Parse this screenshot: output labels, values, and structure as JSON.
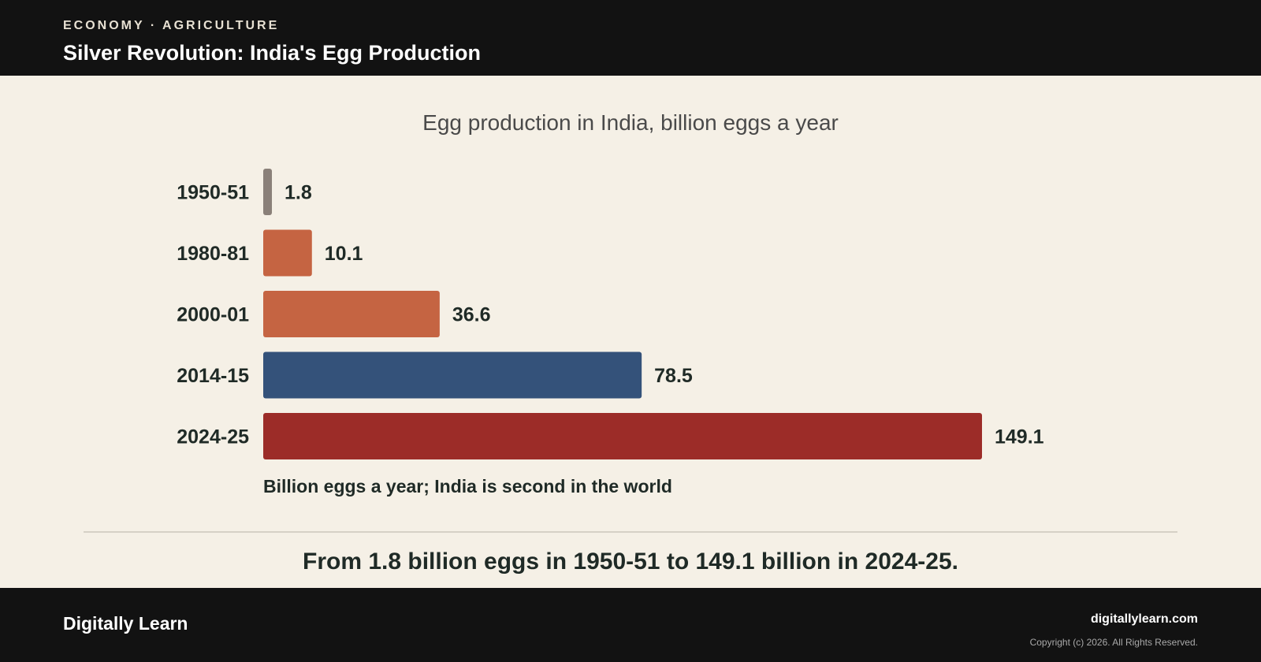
{
  "header": {
    "kicker": "ECONOMY · AGRICULTURE",
    "title": "Silver Revolution: India's Egg Production"
  },
  "chart_data": {
    "type": "bar",
    "orientation": "horizontal",
    "title": "Egg production in India, billion eggs a year",
    "categories": [
      "1950-51",
      "1980-81",
      "2000-01",
      "2014-15",
      "2024-25"
    ],
    "values": [
      1.8,
      10.1,
      36.6,
      78.5,
      149.1
    ],
    "value_labels": [
      "1.8",
      "10.1",
      "36.6",
      "78.5",
      "149.1"
    ],
    "colors": [
      "#8a8079",
      "#c56442",
      "#c56442",
      "#34527a",
      "#9c2c28"
    ],
    "xlabel": "Billion eggs a year; India is second in the world",
    "xlim": [
      0,
      149.1
    ],
    "grid": false
  },
  "takeaway": "From 1.8 billion eggs in 1950-51 to 149.1 billion in 2024-25.",
  "footer": {
    "brand": "Digitally Learn",
    "site": "digitallylearn.com",
    "copyright": "Copyright (c) 2026. All Rights Reserved."
  }
}
